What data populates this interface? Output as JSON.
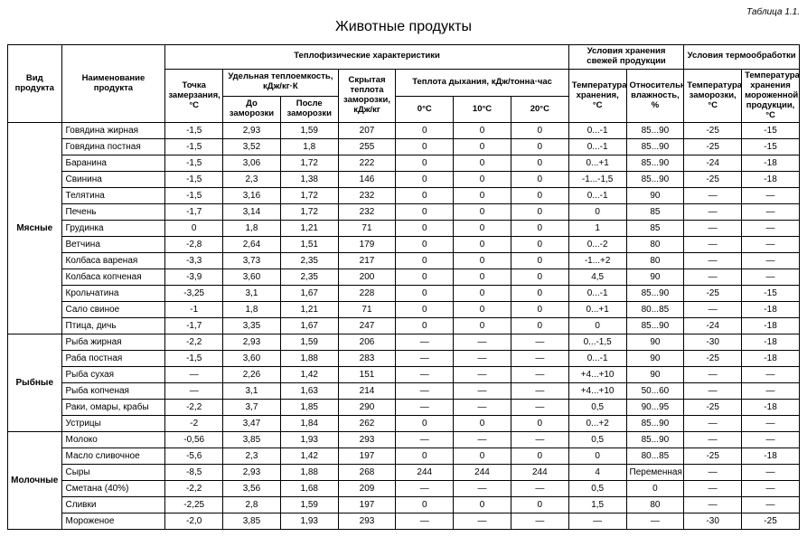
{
  "table_label": "Таблица 1.1.",
  "title": "Животные продукты",
  "dash": "—",
  "headers": {
    "product_type": "Вид продукта",
    "product_name": "Наименование продукта",
    "thermo_group": "Теплофизические характеристики",
    "storage_group": "Условия хранения свежей продукции",
    "treatment_group": "Условия термообработки",
    "freezing_point_l1": "Точка",
    "freezing_point_l2": "замерзания,",
    "freezing_point_l3": "°C",
    "specific_heat": "Удельная теплоемкость, кДж/кг·К",
    "latent_heat_l1": "Скрытая",
    "latent_heat_l2": "теплота",
    "latent_heat_l3": "заморозки,",
    "latent_heat_l4": "кДж/кг",
    "respiration_heat": "Теплота дыхания, кДж/тонна·час",
    "before_l1": "До",
    "before_l2": "заморозки",
    "after_l1": "После",
    "after_l2": "заморозки",
    "t0": "0°C",
    "t10": "10°C",
    "t20": "20°C",
    "storage_temp_l1": "Температура",
    "storage_temp_l2": "хранения,",
    "storage_temp_l3": "°C",
    "humidity_l1": "Относительная",
    "humidity_l2": "влажность,",
    "humidity_l3": "%",
    "freeze_temp_l1": "Температура",
    "freeze_temp_l2": "заморозки,",
    "freeze_temp_l3": "°C",
    "frozen_store_l1": "Температура",
    "frozen_store_l2": "хранения",
    "frozen_store_l3": "мороженной",
    "frozen_store_l4": "продукции,",
    "frozen_store_l5": "°C"
  },
  "categories": [
    {
      "name": "Мясные",
      "rows": [
        {
          "name": "Говядина жирная",
          "fp": "-1,5",
          "bf": "2,93",
          "af": "1,59",
          "lh": "207",
          "r0": "0",
          "r10": "0",
          "r20": "0",
          "st": "0...-1",
          "rh": "85...90",
          "ft": "-25",
          "fst": "-15"
        },
        {
          "name": "Говядина постная",
          "fp": "-1,5",
          "bf": "3,52",
          "af": "1,8",
          "lh": "255",
          "r0": "0",
          "r10": "0",
          "r20": "0",
          "st": "0...-1",
          "rh": "85...90",
          "ft": "-25",
          "fst": "-15"
        },
        {
          "name": "Баранина",
          "fp": "-1,5",
          "bf": "3,06",
          "af": "1,72",
          "lh": "222",
          "r0": "0",
          "r10": "0",
          "r20": "0",
          "st": "0...+1",
          "rh": "85...90",
          "ft": "-24",
          "fst": "-18"
        },
        {
          "name": "Свинина",
          "fp": "-1,5",
          "bf": "2,3",
          "af": "1,38",
          "lh": "146",
          "r0": "0",
          "r10": "0",
          "r20": "0",
          "st": "-1...-1,5",
          "rh": "85...90",
          "ft": "-25",
          "fst": "-18"
        },
        {
          "name": "Телятина",
          "fp": "-1,5",
          "bf": "3,16",
          "af": "1,72",
          "lh": "232",
          "r0": "0",
          "r10": "0",
          "r20": "0",
          "st": "0...-1",
          "rh": "90",
          "ft": "—",
          "fst": "—"
        },
        {
          "name": "Печень",
          "fp": "-1,7",
          "bf": "3,14",
          "af": "1,72",
          "lh": "232",
          "r0": "0",
          "r10": "0",
          "r20": "0",
          "st": "0",
          "rh": "85",
          "ft": "—",
          "fst": "—"
        },
        {
          "name": "Грудинка",
          "fp": "0",
          "bf": "1,8",
          "af": "1,21",
          "lh": "71",
          "r0": "0",
          "r10": "0",
          "r20": "0",
          "st": "1",
          "rh": "85",
          "ft": "—",
          "fst": "—"
        },
        {
          "name": "Ветчина",
          "fp": "-2,8",
          "bf": "2,64",
          "af": "1,51",
          "lh": "179",
          "r0": "0",
          "r10": "0",
          "r20": "0",
          "st": "0...-2",
          "rh": "80",
          "ft": "—",
          "fst": "—"
        },
        {
          "name": "Колбаса вареная",
          "fp": "-3,3",
          "bf": "3,73",
          "af": "2,35",
          "lh": "217",
          "r0": "0",
          "r10": "0",
          "r20": "0",
          "st": "-1...+2",
          "rh": "80",
          "ft": "—",
          "fst": "—"
        },
        {
          "name": "Колбаса копченая",
          "fp": "-3,9",
          "bf": "3,60",
          "af": "2,35",
          "lh": "200",
          "r0": "0",
          "r10": "0",
          "r20": "0",
          "st": "4,5",
          "rh": "90",
          "ft": "—",
          "fst": "—"
        },
        {
          "name": "Крольчатина",
          "fp": "-3,25",
          "bf": "3,1",
          "af": "1,67",
          "lh": "228",
          "r0": "0",
          "r10": "0",
          "r20": "0",
          "st": "0...-1",
          "rh": "85...90",
          "ft": "-25",
          "fst": "-15"
        },
        {
          "name": "Сало свиное",
          "fp": "-1",
          "bf": "1,8",
          "af": "1,21",
          "lh": "71",
          "r0": "0",
          "r10": "0",
          "r20": "0",
          "st": "0...+1",
          "rh": "80...85",
          "ft": "—",
          "fst": "-18"
        },
        {
          "name": "Птица, дичь",
          "fp": "-1,7",
          "bf": "3,35",
          "af": "1,67",
          "lh": "247",
          "r0": "0",
          "r10": "0",
          "r20": "0",
          "st": "0",
          "rh": "85...90",
          "ft": "-24",
          "fst": "-18"
        }
      ]
    },
    {
      "name": "Рыбные",
      "rows": [
        {
          "name": "Рыба жирная",
          "fp": "-2,2",
          "bf": "2,93",
          "af": "1,59",
          "lh": "206",
          "r0": "—",
          "r10": "—",
          "r20": "—",
          "st": "0...-1,5",
          "rh": "90",
          "ft": "-30",
          "fst": "-18"
        },
        {
          "name": "Раба постная",
          "fp": "-1,5",
          "bf": "3,60",
          "af": "1,88",
          "lh": "283",
          "r0": "—",
          "r10": "—",
          "r20": "—",
          "st": "0...-1",
          "rh": "90",
          "ft": "-25",
          "fst": "-18"
        },
        {
          "name": "Рыба сухая",
          "fp": "—",
          "bf": "2,26",
          "af": "1,42",
          "lh": "151",
          "r0": "—",
          "r10": "—",
          "r20": "—",
          "st": "+4...+10",
          "rh": "90",
          "ft": "—",
          "fst": "—"
        },
        {
          "name": "Рыба копченая",
          "fp": "—",
          "bf": "3,1",
          "af": "1,63",
          "lh": "214",
          "r0": "—",
          "r10": "—",
          "r20": "—",
          "st": "+4...+10",
          "rh": "50...60",
          "ft": "—",
          "fst": "—"
        },
        {
          "name": "Раки, омары, крабы",
          "fp": "-2,2",
          "bf": "3,7",
          "af": "1,85",
          "lh": "290",
          "r0": "—",
          "r10": "—",
          "r20": "—",
          "st": "0,5",
          "rh": "90...95",
          "ft": "-25",
          "fst": "-18"
        },
        {
          "name": "Устрицы",
          "fp": "-2",
          "bf": "3,47",
          "af": "1,84",
          "lh": "262",
          "r0": "0",
          "r10": "0",
          "r20": "0",
          "st": "0...+2",
          "rh": "85...90",
          "ft": "—",
          "fst": "—"
        }
      ]
    },
    {
      "name": "Молочные",
      "rows": [
        {
          "name": "Молоко",
          "fp": "-0,56",
          "bf": "3,85",
          "af": "1,93",
          "lh": "293",
          "r0": "—",
          "r10": "—",
          "r20": "—",
          "st": "0,5",
          "rh": "85...90",
          "ft": "—",
          "fst": "—"
        },
        {
          "name": "Масло сливочное",
          "fp": "-5,6",
          "bf": "2,3",
          "af": "1,42",
          "lh": "197",
          "r0": "0",
          "r10": "0",
          "r20": "0",
          "st": "0",
          "rh": "80...85",
          "ft": "-25",
          "fst": "-18"
        },
        {
          "name": "Сыры",
          "fp": "-8,5",
          "bf": "2,93",
          "af": "1,88",
          "lh": "268",
          "r0": "244",
          "r10": "244",
          "r20": "244",
          "st": "4",
          "rh": "Переменная",
          "ft": "—",
          "fst": "—"
        },
        {
          "name": "Сметана (40%)",
          "fp": "-2,2",
          "bf": "3,56",
          "af": "1,68",
          "lh": "209",
          "r0": "—",
          "r10": "—",
          "r20": "—",
          "st": "0,5",
          "rh": "0",
          "ft": "—",
          "fst": "—"
        },
        {
          "name": "Сливки",
          "fp": "-2,25",
          "bf": "2,8",
          "af": "1,59",
          "lh": "197",
          "r0": "0",
          "r10": "0",
          "r20": "0",
          "st": "1,5",
          "rh": "80",
          "ft": "—",
          "fst": "—"
        },
        {
          "name": "Мороженое",
          "fp": "-2,0",
          "bf": "3,85",
          "af": "1,93",
          "lh": "293",
          "r0": "—",
          "r10": "—",
          "r20": "—",
          "st": "—",
          "rh": "—",
          "ft": "-30",
          "fst": "-25"
        }
      ]
    }
  ]
}
